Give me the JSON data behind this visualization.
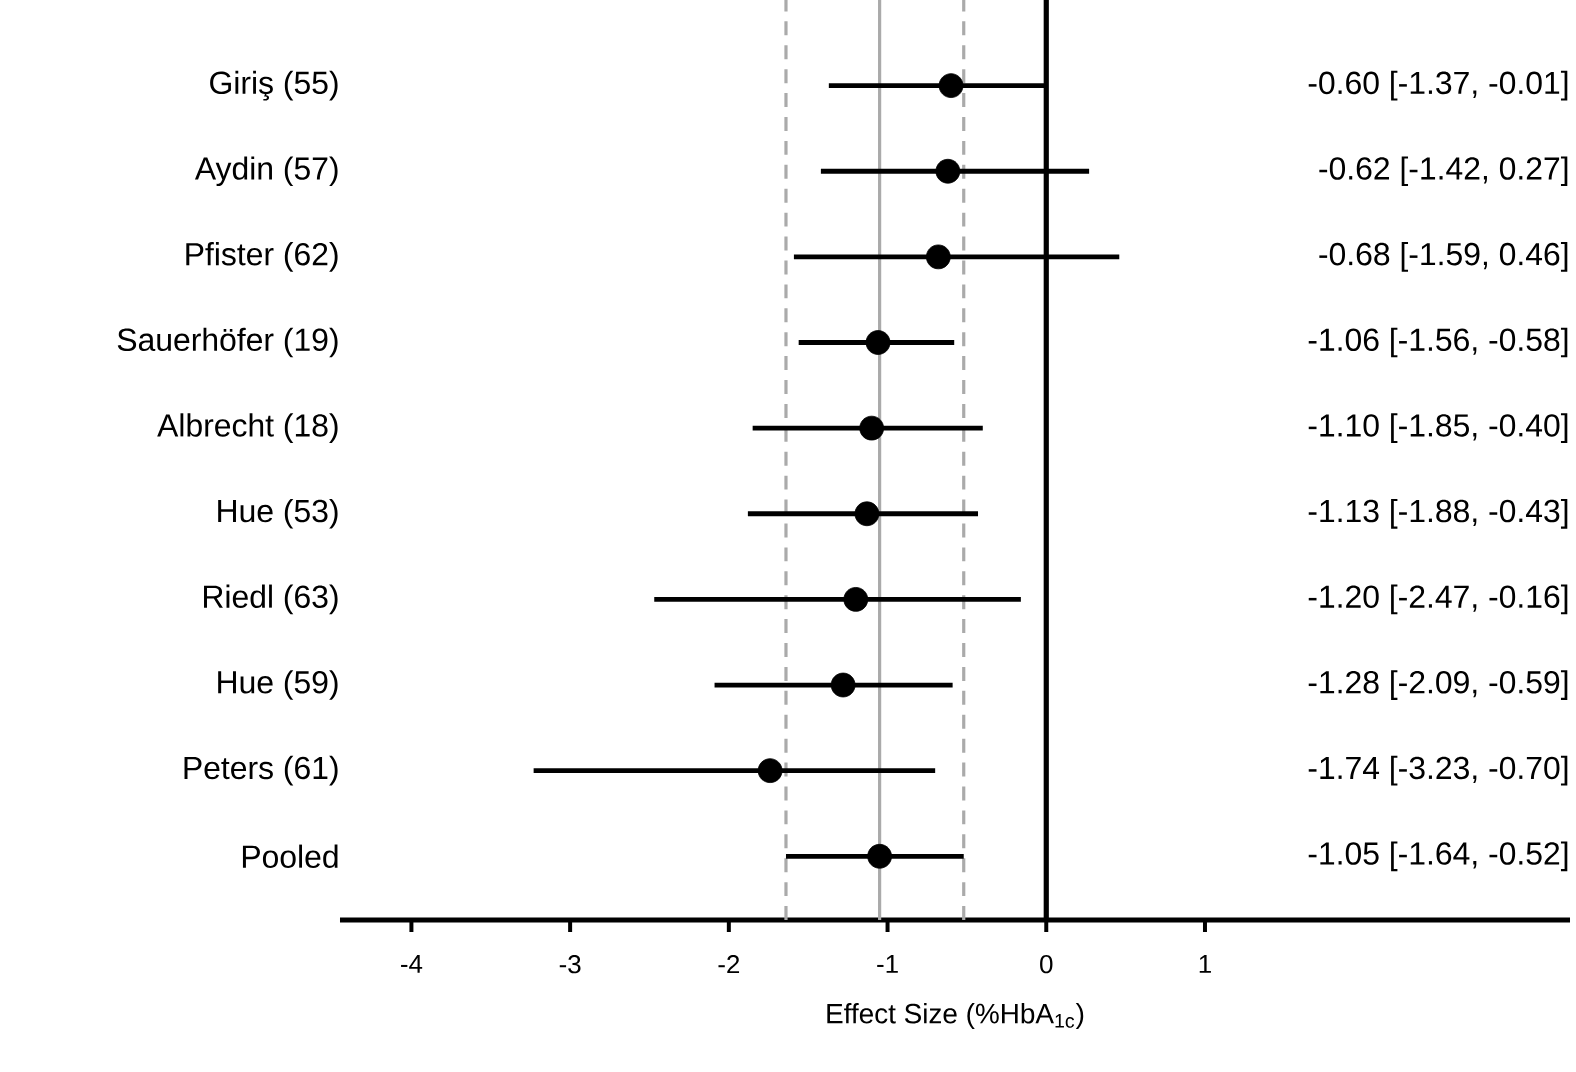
{
  "chart_data": {
    "type": "scatter",
    "orientation": "horizontal",
    "xlabel": "Effect Size (%HbA$_{1c}$)",
    "categories": [
      "Giriş (55)",
      "Aydin (57)",
      "Pfister (62)",
      "Sauerhöfer (19)",
      "Albrecht (18)",
      "Hue (53)",
      "Riedl (63)",
      "Hue (59)",
      "Peters (61)",
      "Pooled"
    ],
    "xlim": [
      -4.45,
      3.3
    ],
    "xticks": [
      -4,
      -3,
      -2,
      -1,
      0,
      1
    ],
    "marker": "circle",
    "series": [
      {
        "color": "#000000",
        "values": [
          -0.6,
          -0.62,
          -0.68,
          -1.06,
          -1.1,
          -1.13,
          -1.2,
          -1.28,
          -1.74,
          -1.05
        ],
        "errors": [
          [
            -1.37,
            -0.01
          ],
          [
            -1.42,
            0.27
          ],
          [
            -1.59,
            0.46
          ],
          [
            -1.56,
            -0.58
          ],
          [
            -1.85,
            -0.4
          ],
          [
            -1.88,
            -0.43
          ],
          [
            -2.47,
            -0.16
          ],
          [
            -2.09,
            -0.59
          ],
          [
            -3.23,
            -0.7
          ],
          [
            -1.64,
            -0.52
          ]
        ]
      }
    ],
    "annotations": [
      "-0.60 [-1.37, -0.01]",
      "-0.62 [-1.42, 0.27]",
      "-0.68 [-1.59, 0.46]",
      "-1.06 [-1.56, -0.58]",
      "-1.10 [-1.85, -0.40]",
      "-1.13 [-1.88, -0.43]",
      "-1.20 [-2.47, -0.16]",
      "-1.28 [-2.09, -0.59]",
      "-1.74 [-3.23, -0.70]",
      "-1.05 [-1.64, -0.52]"
    ],
    "ref_lines": [
      {
        "axis": "x",
        "value": 0,
        "color": "#000000",
        "line_style": "solid"
      },
      {
        "axis": "x",
        "value": -1.05,
        "color": "#aaaaaa",
        "line_style": "solid"
      },
      {
        "axis": "x",
        "value": -1.64,
        "color": "#aaaaaa",
        "line_style": "dashed"
      },
      {
        "axis": "x",
        "value": -0.52,
        "color": "#aaaaaa",
        "line_style": "dashed"
      }
    ]
  }
}
